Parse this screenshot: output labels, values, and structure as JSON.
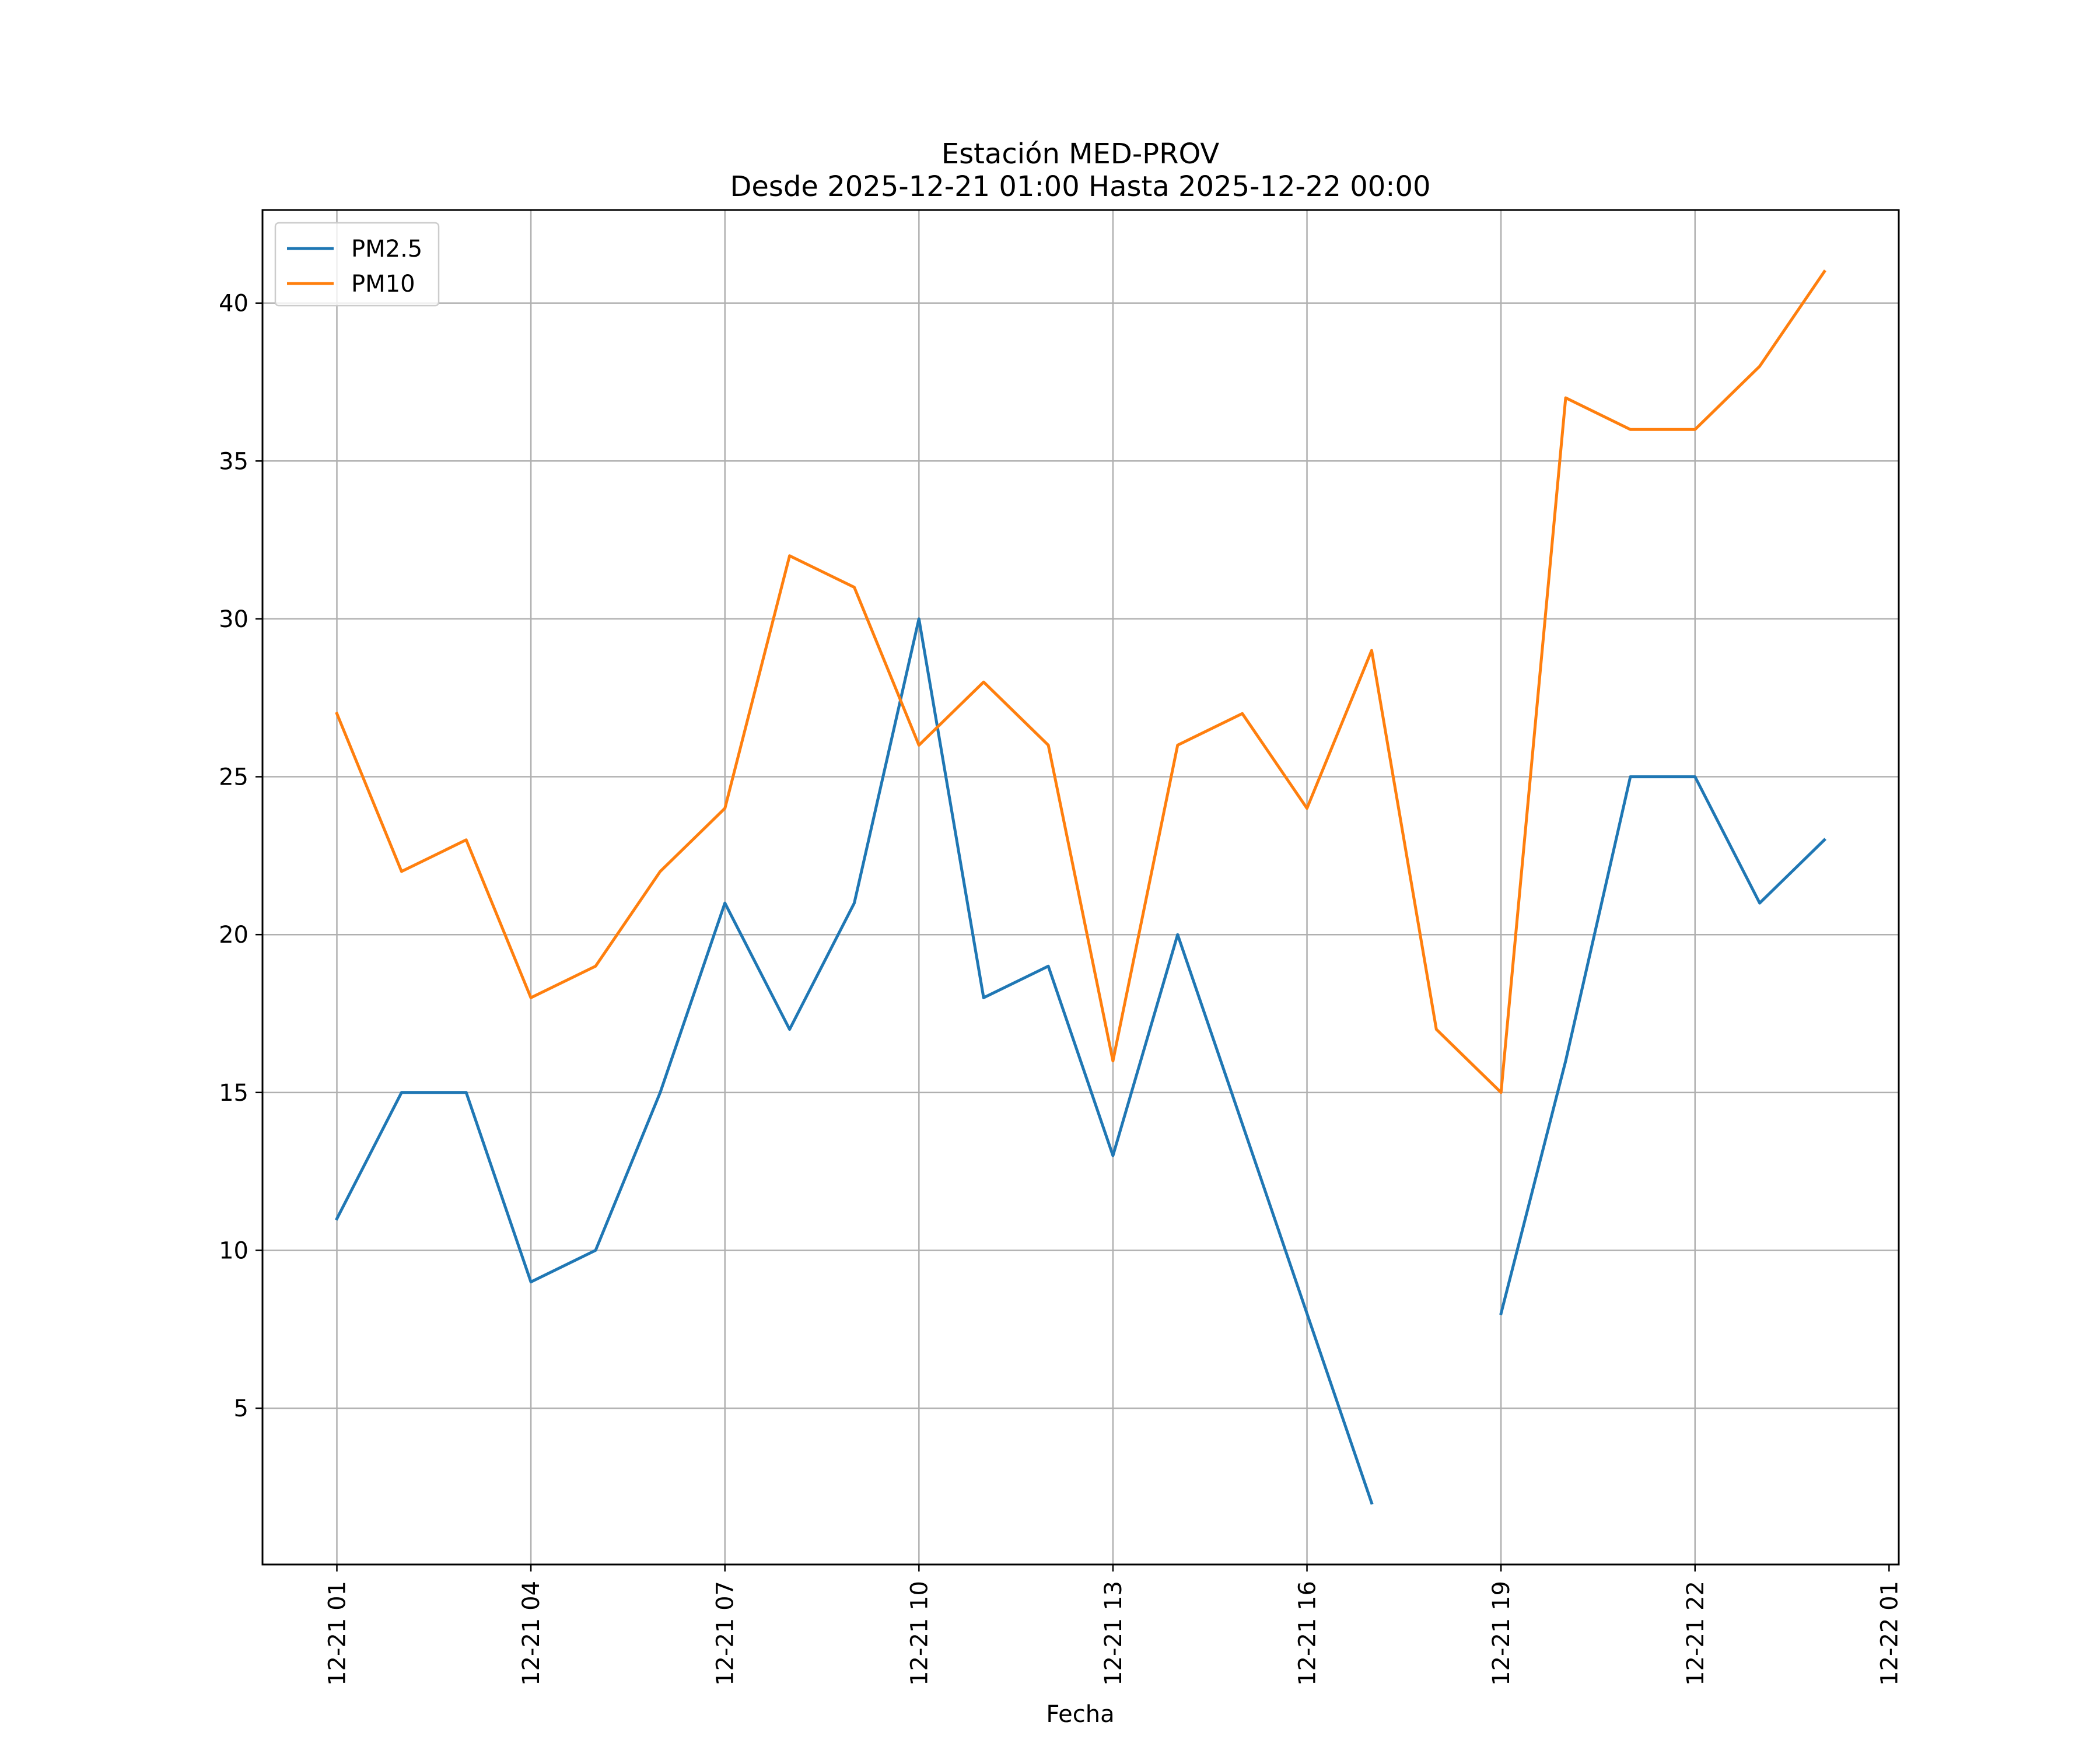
{
  "chart_data": {
    "type": "line",
    "title": "Estación MED-PROV",
    "subtitle": "Desde 2025-12-21 01:00 Hasta 2025-12-22 00:00",
    "xlabel": "Fecha",
    "ylabel": "",
    "x": [
      "2025-12-21 01:00",
      "2025-12-21 02:00",
      "2025-12-21 03:00",
      "2025-12-21 04:00",
      "2025-12-21 05:00",
      "2025-12-21 06:00",
      "2025-12-21 07:00",
      "2025-12-21 08:00",
      "2025-12-21 09:00",
      "2025-12-21 10:00",
      "2025-12-21 11:00",
      "2025-12-21 12:00",
      "2025-12-21 13:00",
      "2025-12-21 14:00",
      "2025-12-21 15:00",
      "2025-12-21 16:00",
      "2025-12-21 17:00",
      "2025-12-21 18:00",
      "2025-12-21 19:00",
      "2025-12-21 20:00",
      "2025-12-21 21:00",
      "2025-12-21 22:00",
      "2025-12-21 23:00",
      "2025-12-22 00:00"
    ],
    "x_ticks": [
      "12-21 01",
      "12-21 04",
      "12-21 07",
      "12-21 10",
      "12-21 13",
      "12-21 16",
      "12-21 19",
      "12-21 22",
      "12-22 01"
    ],
    "x_tick_values": [
      "2025-12-21 01:00",
      "2025-12-21 04:00",
      "2025-12-21 07:00",
      "2025-12-21 10:00",
      "2025-12-21 13:00",
      "2025-12-21 16:00",
      "2025-12-21 19:00",
      "2025-12-21 22:00",
      "2025-12-22 01:00"
    ],
    "xlim": [
      "2025-12-20 23:51",
      "2025-12-22 01:09"
    ],
    "y_ticks": [
      5,
      10,
      15,
      20,
      25,
      30,
      35,
      40
    ],
    "ylim": [
      0.05,
      42.95
    ],
    "grid": true,
    "legend_position": "upper-left",
    "series": [
      {
        "name": "PM2.5",
        "color": "#1f77b4",
        "values": [
          11,
          15,
          15,
          9,
          10,
          15,
          21,
          17,
          21,
          30,
          18,
          19,
          13,
          20,
          14,
          8,
          2,
          null,
          8,
          16,
          25,
          25,
          21,
          23
        ]
      },
      {
        "name": "PM10",
        "color": "#ff7f0e",
        "values": [
          27,
          22,
          23,
          18,
          19,
          22,
          24,
          32,
          31,
          26,
          28,
          26,
          16,
          26,
          27,
          24,
          29,
          17,
          15,
          37,
          36,
          36,
          38,
          41
        ]
      }
    ]
  }
}
